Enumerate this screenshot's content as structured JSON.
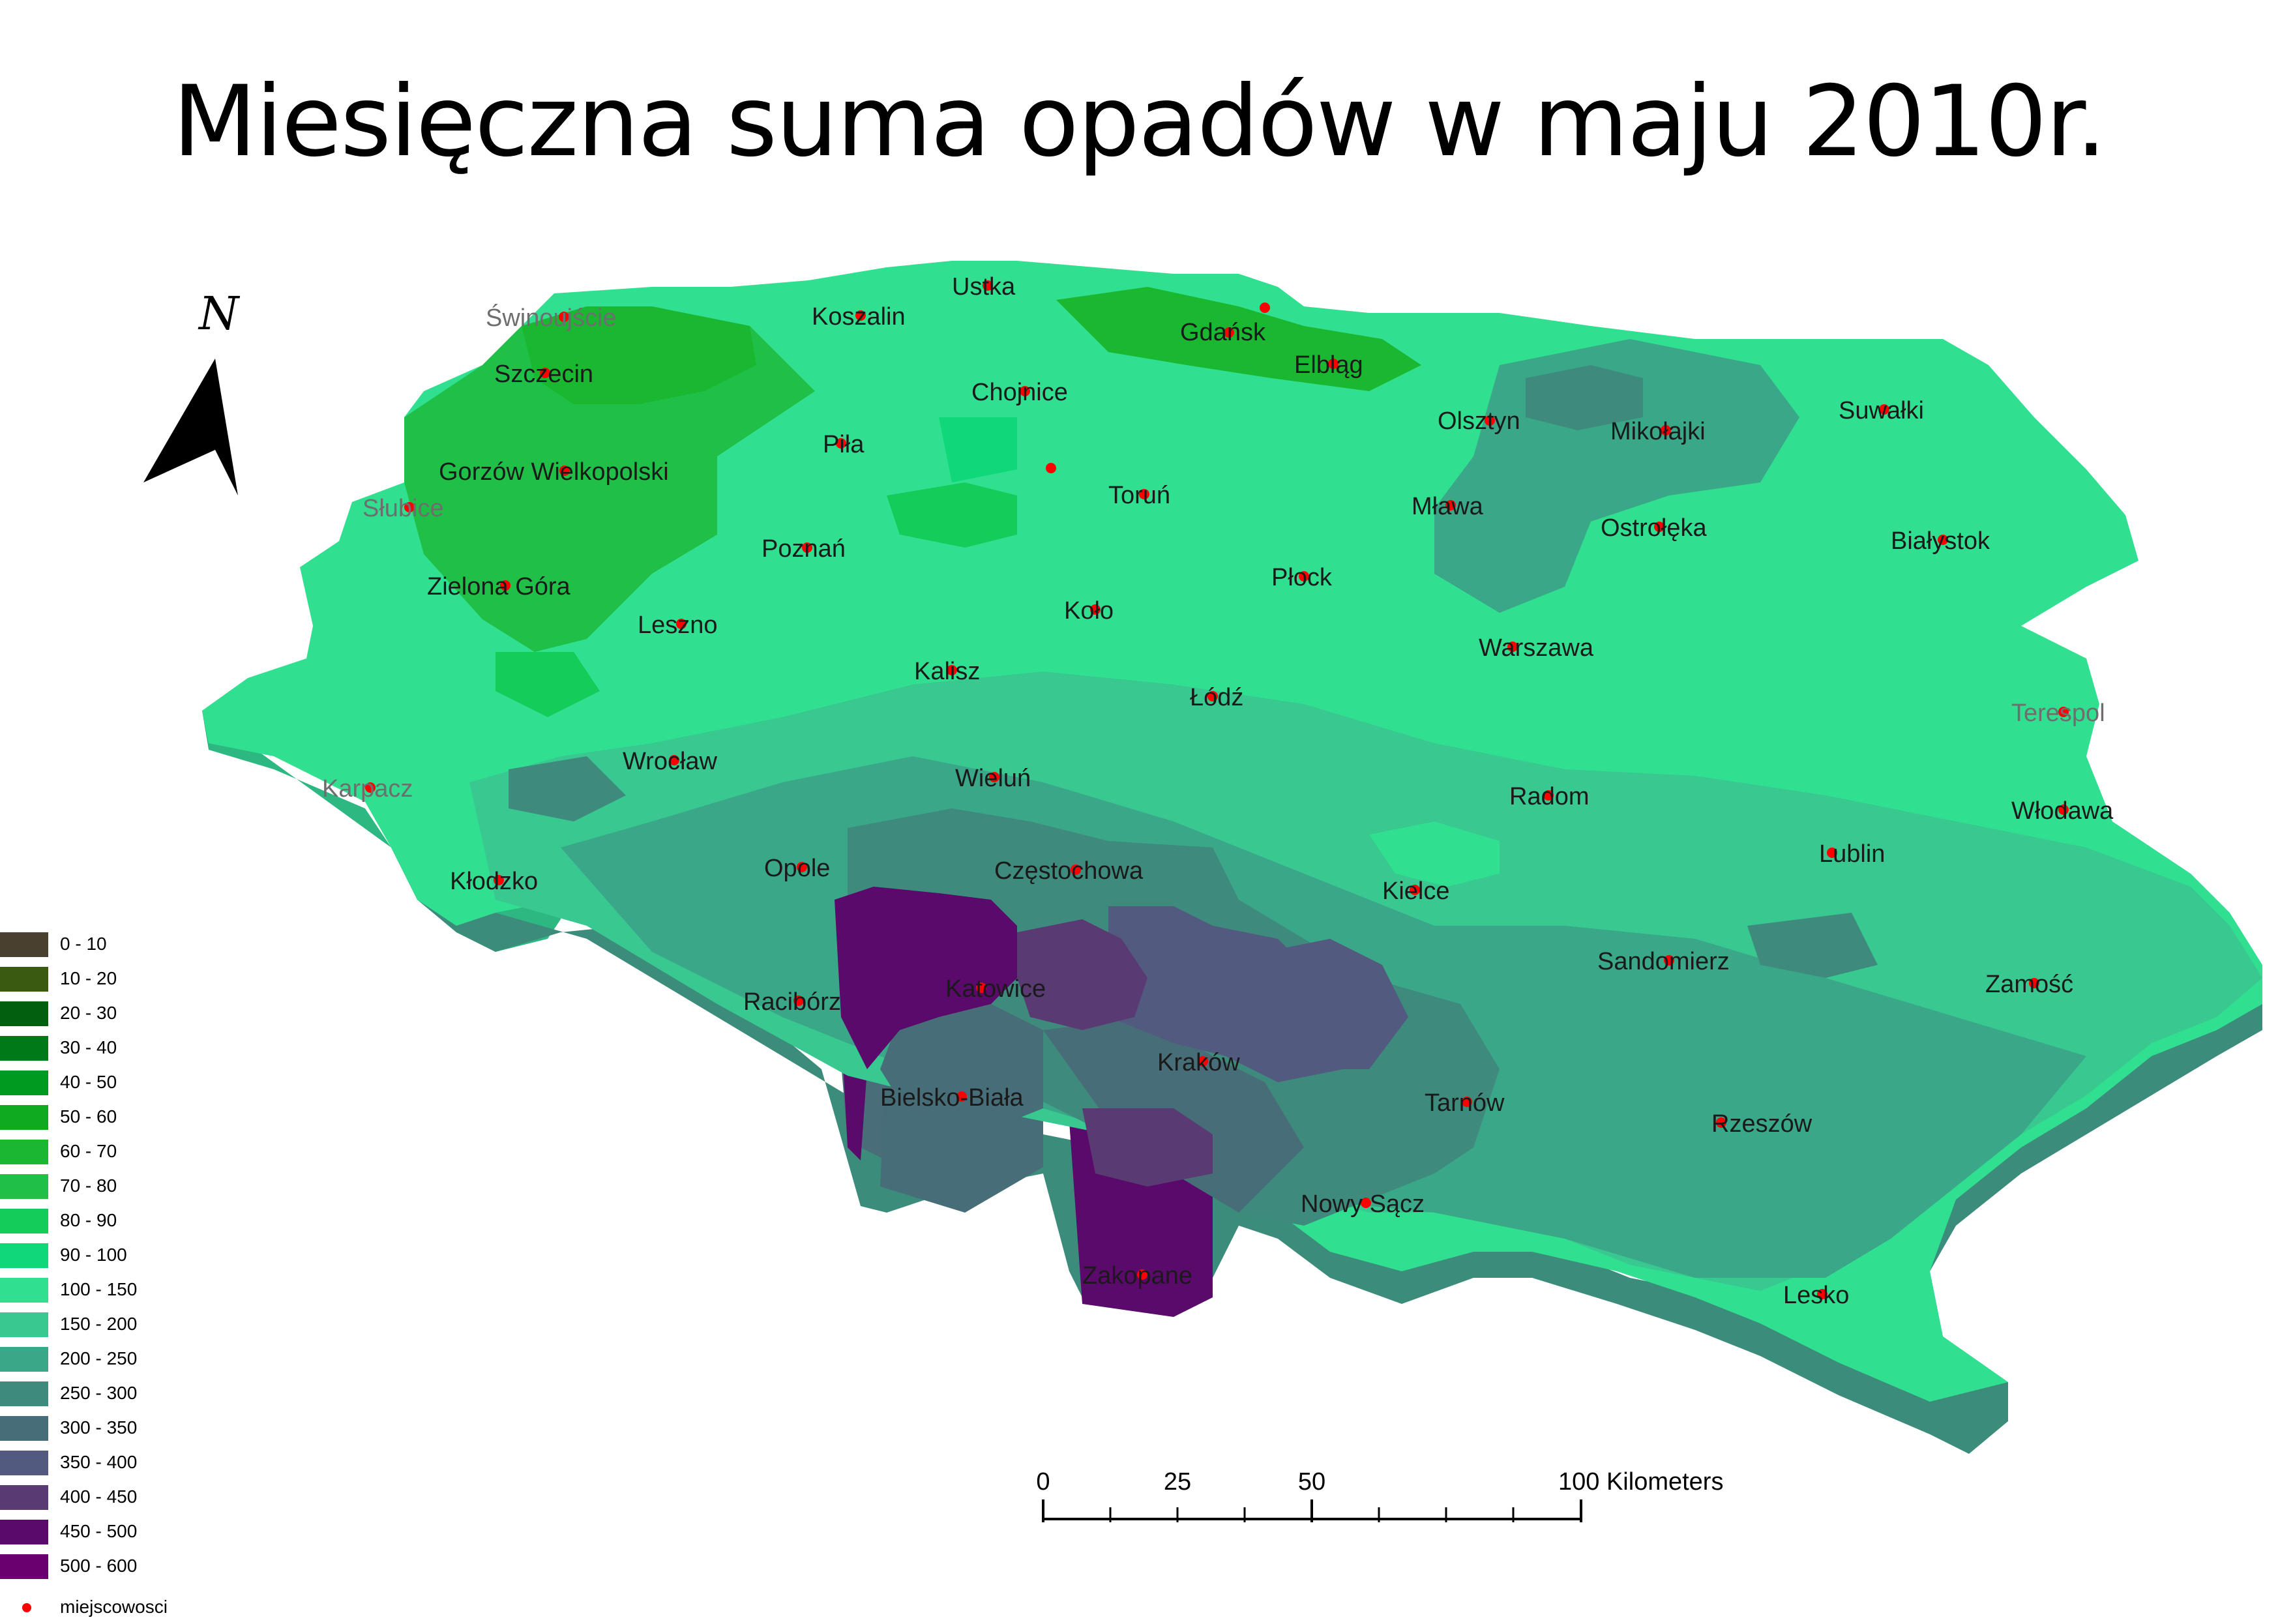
{
  "title": "Miesięczna suma opadów w maju 2010r.",
  "north_arrow": {
    "label": "N",
    "icon": "north-arrow-icon"
  },
  "legend": {
    "items": [
      {
        "label": "0 - 10",
        "color": "#4a4030"
      },
      {
        "label": "10 - 20",
        "color": "#3a5a10"
      },
      {
        "label": "20 - 30",
        "color": "#006010"
      },
      {
        "label": "30 - 40",
        "color": "#007a18"
      },
      {
        "label": "40 - 50",
        "color": "#009a20"
      },
      {
        "label": "50 - 60",
        "color": "#10aa20"
      },
      {
        "label": "60 - 70",
        "color": "#1ab830"
      },
      {
        "label": "70 - 80",
        "color": "#20c048"
      },
      {
        "label": "80 - 90",
        "color": "#14cc5a"
      },
      {
        "label": "90 - 100",
        "color": "#10d878"
      },
      {
        "label": "100 - 150",
        "color": "#30e090"
      },
      {
        "label": "150 - 200",
        "color": "#38c890"
      },
      {
        "label": "200 - 250",
        "color": "#3aa888"
      },
      {
        "label": "250 - 300",
        "color": "#3e8a7c"
      },
      {
        "label": "300 - 350",
        "color": "#476e78"
      },
      {
        "label": "350 - 400",
        "color": "#525a80"
      },
      {
        "label": "400 - 450",
        "color": "#5a3a72"
      },
      {
        "label": "450 - 500",
        "color": "#5a0a6a"
      },
      {
        "label": "500 - 600",
        "color": "#6a0070"
      }
    ],
    "points_label": "miejscowosci",
    "points_color": "#ff0000"
  },
  "scale_bar": {
    "labels": [
      "0",
      "25",
      "50",
      "100 Kilometers"
    ]
  },
  "cities": [
    {
      "name": "Świnoujście",
      "grey": true
    },
    {
      "name": "Koszalin"
    },
    {
      "name": "Ustka"
    },
    {
      "name": "Gdańsk"
    },
    {
      "name": "Elbląg"
    },
    {
      "name": "Szczecin"
    },
    {
      "name": "Chojnice"
    },
    {
      "name": "Olsztyn"
    },
    {
      "name": "Mikołajki"
    },
    {
      "name": "Suwałki"
    },
    {
      "name": "Piła"
    },
    {
      "name": "Gorzów Wielkopolski"
    },
    {
      "name": "Toruń"
    },
    {
      "name": "Mława"
    },
    {
      "name": "Słubice",
      "grey": true
    },
    {
      "name": "Ostrołęka"
    },
    {
      "name": "Białystok"
    },
    {
      "name": "Poznań"
    },
    {
      "name": "Płock"
    },
    {
      "name": "Zielona Góra"
    },
    {
      "name": "Koło"
    },
    {
      "name": "Leszno"
    },
    {
      "name": "Warszawa"
    },
    {
      "name": "Kalisz"
    },
    {
      "name": "Łódź"
    },
    {
      "name": "Terespol",
      "grey": true
    },
    {
      "name": "Wrocław"
    },
    {
      "name": "Wieluń"
    },
    {
      "name": "Karpacz",
      "grey": true
    },
    {
      "name": "Radom"
    },
    {
      "name": "Włodawa"
    },
    {
      "name": "Lublin"
    },
    {
      "name": "Opole"
    },
    {
      "name": "Częstochowa"
    },
    {
      "name": "Kłodzko"
    },
    {
      "name": "Kielce"
    },
    {
      "name": "Sandomierz"
    },
    {
      "name": "Racibórz"
    },
    {
      "name": "Katowice"
    },
    {
      "name": "Zamość"
    },
    {
      "name": "Kraków"
    },
    {
      "name": "Bielsko-Biała"
    },
    {
      "name": "Tarnów"
    },
    {
      "name": "Rzeszów"
    },
    {
      "name": "Nowy Sącz"
    },
    {
      "name": "Zakopane"
    },
    {
      "name": "Lesko"
    }
  ]
}
